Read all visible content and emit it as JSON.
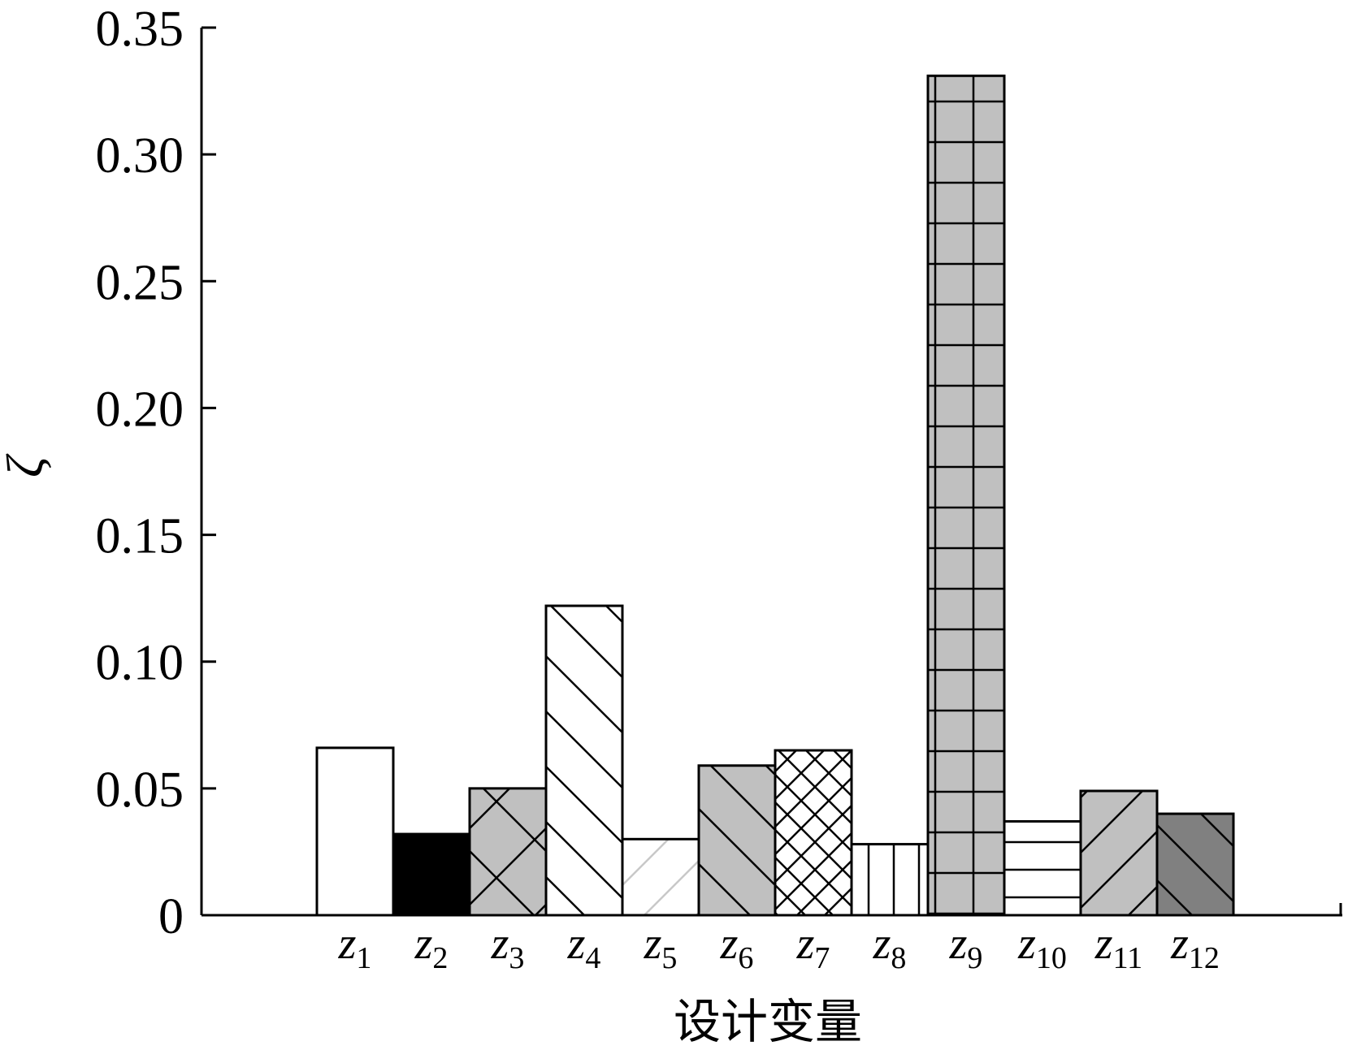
{
  "chart_data": {
    "type": "bar",
    "categories": [
      {
        "base": "z",
        "sub": "1"
      },
      {
        "base": "z",
        "sub": "2"
      },
      {
        "base": "z",
        "sub": "3"
      },
      {
        "base": "z",
        "sub": "4"
      },
      {
        "base": "z",
        "sub": "5"
      },
      {
        "base": "z",
        "sub": "6"
      },
      {
        "base": "z",
        "sub": "7"
      },
      {
        "base": "z",
        "sub": "8"
      },
      {
        "base": "z",
        "sub": "9"
      },
      {
        "base": "z",
        "sub": "10"
      },
      {
        "base": "z",
        "sub": "11"
      },
      {
        "base": "z",
        "sub": "12"
      }
    ],
    "values": [
      0.066,
      0.032,
      0.05,
      0.122,
      0.03,
      0.059,
      0.065,
      0.028,
      0.331,
      0.037,
      0.049,
      0.04
    ],
    "xlabel": "设计变量",
    "ylabel": "ζ",
    "ylim": [
      0,
      0.35
    ],
    "yticks": [
      "0",
      "0.05",
      "0.10",
      "0.15",
      "0.20",
      "0.25",
      "0.30",
      "0.35"
    ],
    "grid": false,
    "legend": "none",
    "bar_styles": [
      {
        "fill": "#ffffff",
        "hatch": "none"
      },
      {
        "fill": "#000000",
        "hatch": "none"
      },
      {
        "fill": "#c0c0c0",
        "hatch": "crosshatch-diagonal-wide"
      },
      {
        "fill": "#ffffff",
        "hatch": "backslash"
      },
      {
        "fill": "#ffffff",
        "hatch": "slash-light"
      },
      {
        "fill": "#c0c0c0",
        "hatch": "backslash"
      },
      {
        "fill": "#ffffff",
        "hatch": "crosshatch-diagonal"
      },
      {
        "fill": "#ffffff",
        "hatch": "vertical"
      },
      {
        "fill": "#c0c0c0",
        "hatch": "grid"
      },
      {
        "fill": "#ffffff",
        "hatch": "horizontal"
      },
      {
        "fill": "#c0c0c0",
        "hatch": "slash"
      },
      {
        "fill": "#808080",
        "hatch": "backslash"
      }
    ]
  }
}
